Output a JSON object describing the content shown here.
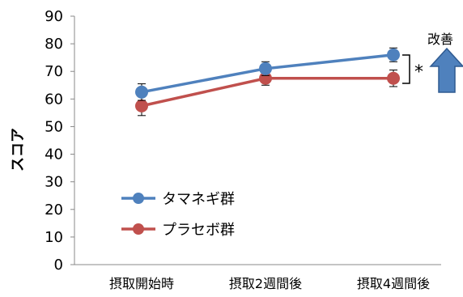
{
  "chart_data": {
    "type": "line",
    "title": "",
    "xlabel": "",
    "ylabel": "スコア",
    "ylim": [
      0,
      90
    ],
    "yticks": [
      0,
      10,
      20,
      30,
      40,
      50,
      60,
      70,
      80,
      90
    ],
    "categories": [
      "摂取開始時",
      "摂取2週間後",
      "摂取4週間後"
    ],
    "series": [
      {
        "name": "タマネギ群",
        "values": [
          62.5,
          71,
          76
        ],
        "errors": [
          3,
          2.5,
          2.5
        ],
        "color": "#4f81bd"
      },
      {
        "name": "プラセボ群",
        "values": [
          57.5,
          67.5,
          67.5
        ],
        "errors": [
          3.5,
          2.5,
          3
        ],
        "color": "#c0504d"
      }
    ],
    "grid": false,
    "legend_position": "bottom-left",
    "annotations": {
      "significance": "*",
      "improvement_label": "改善",
      "arrow_color": "#4f81bd"
    }
  }
}
